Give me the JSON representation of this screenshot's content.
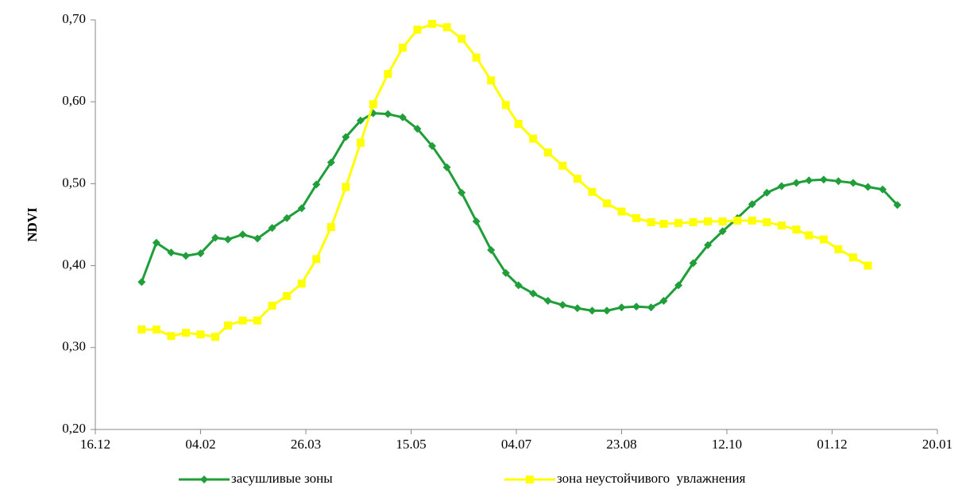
{
  "chart_data": {
    "type": "line",
    "ylabel": "NDVI",
    "x": [
      22,
      29,
      36,
      43,
      50,
      57,
      63,
      70,
      77,
      84,
      91,
      98,
      105,
      112,
      119,
      126,
      132,
      139,
      146,
      153,
      160,
      167,
      174,
      181,
      188,
      195,
      201,
      208,
      215,
      222,
      229,
      236,
      243,
      250,
      257,
      264,
      270,
      277,
      284,
      291,
      298,
      305,
      312,
      319,
      326,
      333,
      339,
      346,
      353,
      360,
      367,
      374,
      381
    ],
    "series": [
      {
        "name": "засушливые зоны",
        "color": "#1f9e3a",
        "marker": "diamond",
        "values": [
          0.38,
          0.428,
          0.416,
          0.412,
          0.415,
          0.434,
          0.432,
          0.438,
          0.433,
          0.446,
          0.458,
          0.47,
          0.499,
          0.526,
          0.557,
          0.577,
          0.586,
          0.585,
          0.581,
          0.567,
          0.546,
          0.52,
          0.489,
          0.454,
          0.419,
          0.391,
          0.376,
          0.366,
          0.357,
          0.352,
          0.348,
          0.345,
          0.345,
          0.349,
          0.35,
          0.349,
          0.357,
          0.376,
          0.403,
          0.425,
          0.442,
          0.458,
          0.475,
          0.489,
          0.497,
          0.501,
          0.504,
          0.505,
          0.503,
          0.501,
          0.496,
          0.493,
          0.474
        ]
      },
      {
        "name": "зона неустойчивого  увлажнения",
        "color": "#ffff00",
        "marker": "square",
        "values": [
          0.322,
          0.322,
          0.314,
          0.318,
          0.316,
          0.313,
          0.327,
          0.333,
          0.333,
          0.351,
          0.363,
          0.378,
          0.408,
          0.447,
          0.496,
          0.55,
          0.597,
          0.634,
          0.666,
          0.688,
          0.695,
          0.691,
          0.677,
          0.654,
          0.626,
          0.596,
          0.573,
          0.555,
          0.538,
          0.522,
          0.506,
          0.49,
          0.476,
          0.466,
          0.458,
          0.453,
          0.451,
          0.452,
          0.453,
          0.454,
          0.454,
          0.455,
          0.455,
          0.453,
          0.449,
          0.444,
          0.437,
          0.432,
          0.42,
          0.41,
          0.4,
          null,
          null
        ]
      }
    ],
    "xlim": [
      0,
      400
    ],
    "xticks": [
      {
        "value": 0,
        "label": "16.12"
      },
      {
        "value": 50,
        "label": "04.02"
      },
      {
        "value": 100,
        "label": "26.03"
      },
      {
        "value": 150,
        "label": "15.05"
      },
      {
        "value": 200,
        "label": "04.07"
      },
      {
        "value": 250,
        "label": "23.08"
      },
      {
        "value": 300,
        "label": "12.10"
      },
      {
        "value": 350,
        "label": "01.12"
      },
      {
        "value": 400,
        "label": "20.01"
      }
    ],
    "ylim": [
      0.2,
      0.7
    ],
    "yticks": [
      {
        "value": 0.2,
        "label": "0,20"
      },
      {
        "value": 0.3,
        "label": "0,30"
      },
      {
        "value": 0.4,
        "label": "0,40"
      },
      {
        "value": 0.5,
        "label": "0,50"
      },
      {
        "value": 0.6,
        "label": "0,60"
      },
      {
        "value": 0.7,
        "label": "0,70"
      }
    ],
    "legend": "bottom"
  }
}
